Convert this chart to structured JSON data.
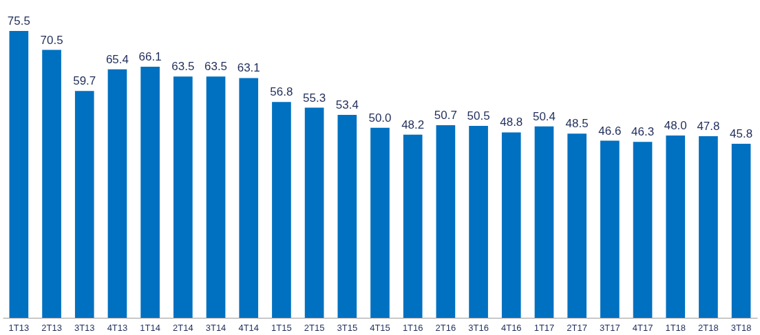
{
  "chart_data": {
    "type": "bar",
    "categories": [
      "1T13",
      "2T13",
      "3T13",
      "4T13",
      "1T14",
      "2T14",
      "3T14",
      "4T14",
      "1T15",
      "2T15",
      "3T15",
      "4T15",
      "1T16",
      "2T16",
      "3T16",
      "4T16",
      "1T17",
      "2T17",
      "3T17",
      "4T17",
      "1T18",
      "2T18",
      "3T18"
    ],
    "values": [
      75.5,
      70.5,
      59.7,
      65.4,
      66.1,
      63.5,
      63.5,
      63.1,
      56.8,
      55.3,
      53.4,
      50.0,
      48.2,
      50.7,
      50.5,
      48.8,
      50.4,
      48.5,
      46.6,
      46.3,
      48.0,
      47.8,
      45.8
    ],
    "value_labels": [
      "75.5",
      "70.5",
      "59.7",
      "65.4",
      "66.1",
      "63.5",
      "63.5",
      "63.1",
      "56.8",
      "55.3",
      "53.4",
      "50.0",
      "48.2",
      "50.7",
      "50.5",
      "48.8",
      "50.4",
      "48.5",
      "46.6",
      "46.3",
      "48.0",
      "47.8",
      "45.8"
    ],
    "color": "#0070c0",
    "tick_labels": "x",
    "grid": false
  }
}
